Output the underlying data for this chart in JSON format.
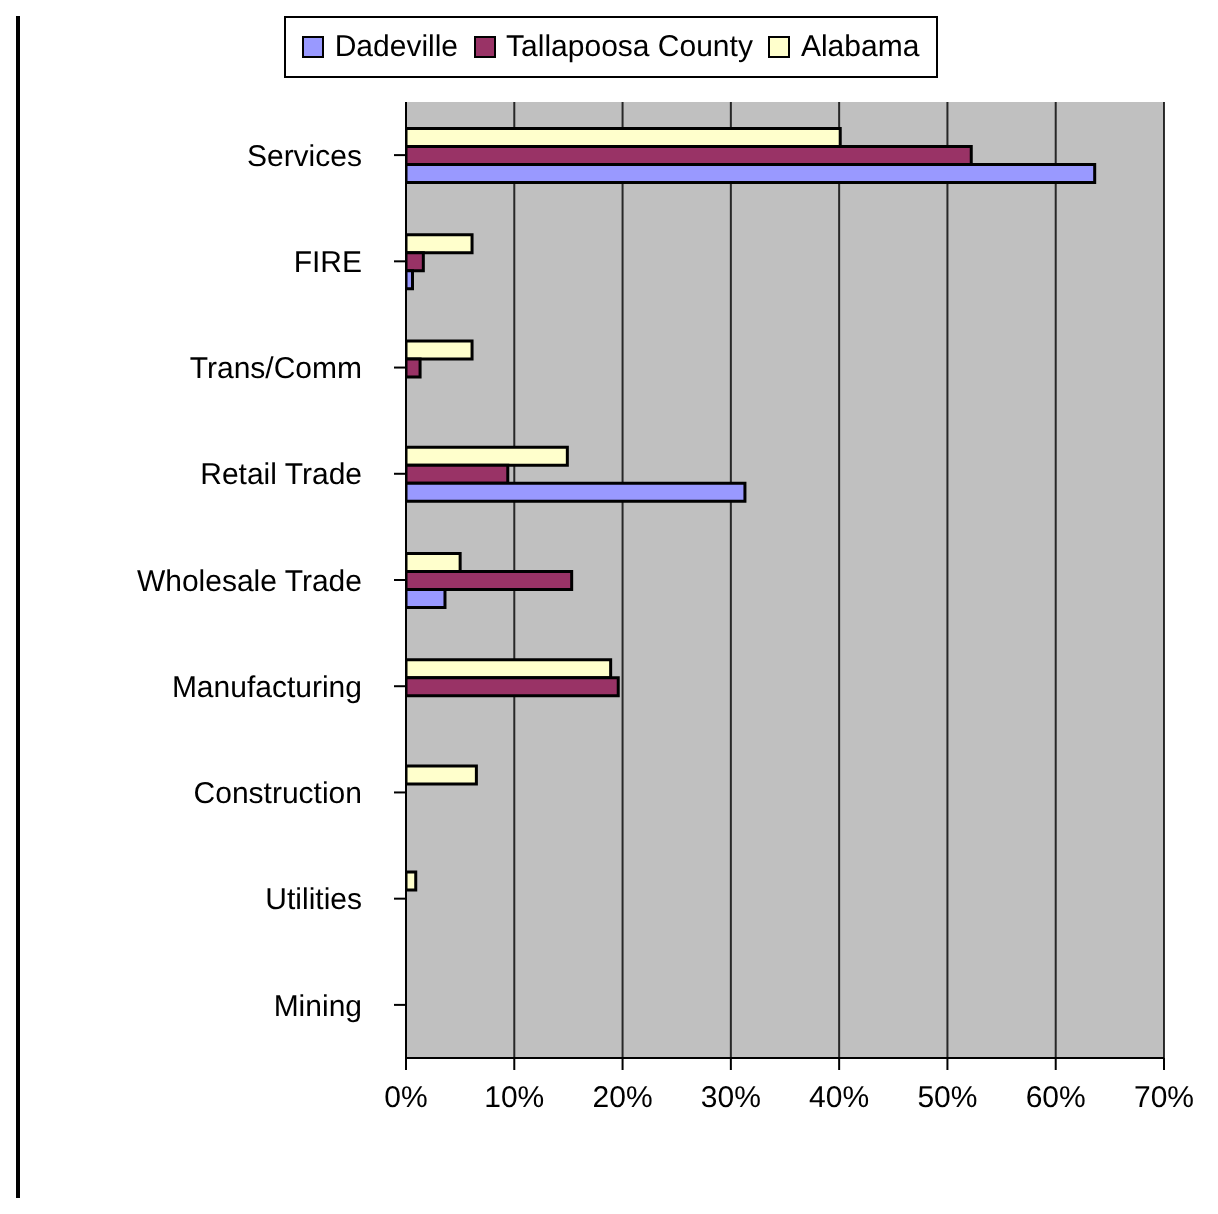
{
  "chart_data": {
    "type": "bar",
    "orientation": "horizontal",
    "categories": [
      "Services",
      "FIRE",
      "Trans/Comm",
      "Retail Trade",
      "Wholesale Trade",
      "Manufacturing",
      "Construction",
      "Utilities",
      "Mining"
    ],
    "series": [
      {
        "name": "Dadeville",
        "color": "#9999ff",
        "values": [
          63.6,
          0.6,
          0,
          31.3,
          3.6,
          0,
          0,
          0,
          0
        ]
      },
      {
        "name": "Tallapoosa County",
        "color": "#993366",
        "values": [
          52.2,
          1.6,
          1.3,
          9.4,
          15.3,
          19.6,
          0,
          0,
          0
        ]
      },
      {
        "name": "Alabama",
        "color": "#ffffcc",
        "values": [
          40.1,
          6.1,
          6.1,
          14.9,
          5.0,
          18.9,
          6.5,
          0.9,
          0
        ]
      }
    ],
    "xlim": [
      0,
      70
    ],
    "xticks": [
      {
        "value": 0,
        "label": "0%"
      },
      {
        "value": 10,
        "label": "10%"
      },
      {
        "value": 20,
        "label": "20%"
      },
      {
        "value": 30,
        "label": "30%"
      },
      {
        "value": 40,
        "label": "40%"
      },
      {
        "value": 50,
        "label": "50%"
      },
      {
        "value": 60,
        "label": "60%"
      },
      {
        "value": 70,
        "label": "70%"
      }
    ],
    "grid": "x",
    "legend": "top"
  }
}
